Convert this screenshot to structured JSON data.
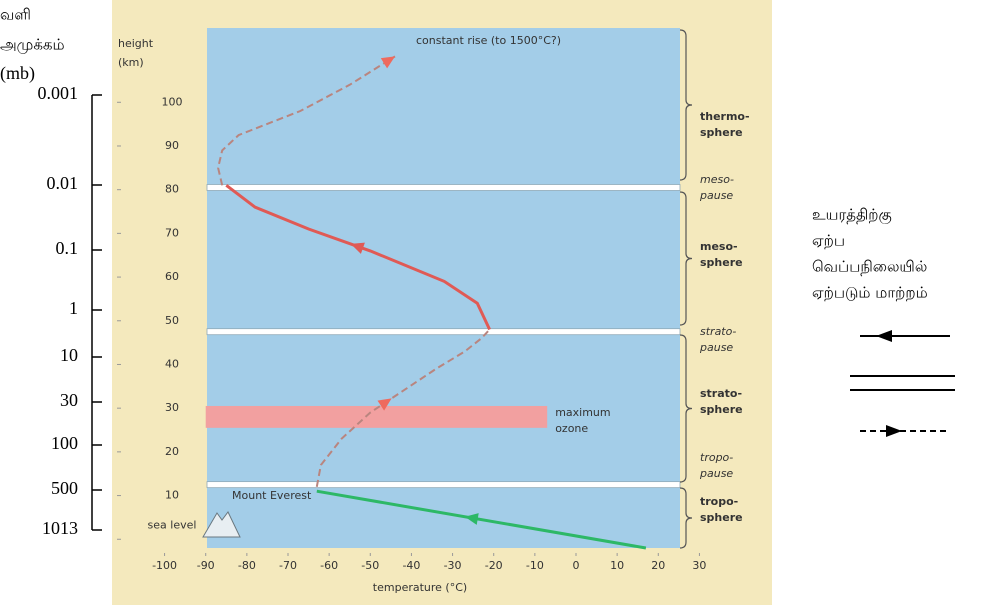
{
  "left_axis": {
    "title_lines": [
      "வளி",
      "அமுக்கம்",
      "(mb)"
    ],
    "ticks": [
      0.001,
      0.01,
      0.1,
      1,
      10,
      30,
      100,
      500,
      1013
    ]
  },
  "right_note": {
    "lines": [
      "உயரத்திற்கு",
      "ஏற்ப",
      "வெப்பநிலையில்",
      "ஏற்படும்  மாற்றம்"
    ]
  },
  "chart_data": {
    "type": "line",
    "ylabel_lines": [
      "height",
      "(km)"
    ],
    "xlabel": "temperature (°C)",
    "xlim": [
      -105,
      35
    ],
    "xticks": [
      -100,
      -90,
      -80,
      -70,
      -60,
      -50,
      -40,
      -30,
      -20,
      -10,
      0,
      10,
      20,
      30
    ],
    "ylim": [
      -2,
      117
    ],
    "yticks": [
      {
        "value": 0,
        "label": "sea level"
      },
      10,
      20,
      30,
      40,
      50,
      60,
      70,
      80,
      90,
      100
    ],
    "series": [
      {
        "color": "#2db866",
        "dash": false,
        "x": [
          17,
          -63
        ],
        "values": [
          -2,
          11
        ]
      },
      {
        "color": "#b9857f",
        "dash": true,
        "x": [
          -63,
          -62,
          -57,
          -50,
          -42,
          -34,
          -27,
          -23,
          -21
        ],
        "values": [
          12,
          17,
          23,
          29,
          34,
          39,
          43,
          46,
          48
        ]
      },
      {
        "color": "#e05a55",
        "dash": false,
        "x": [
          -21,
          -24,
          -32,
          -50,
          -65,
          -78,
          -85
        ],
        "values": [
          48,
          54,
          59,
          66,
          71,
          76,
          81
        ]
      },
      {
        "color": "#b9857f",
        "dash": true,
        "x": [
          -86,
          -87,
          -86,
          -82,
          -67,
          -55,
          -44
        ],
        "values": [
          81,
          85,
          89,
          92.5,
          98,
          104,
          110.5
        ]
      }
    ],
    "boundaries": [
      12.5,
      47.5,
      80.5
    ],
    "ozone": {
      "label_lines": [
        "maximum",
        "ozone"
      ],
      "ylim": [
        25.5,
        30.5
      ],
      "xlim": [
        -90,
        -7
      ],
      "color": "#f2a0a0"
    },
    "annotations": [
      "constant rise (to 1500°C?)",
      "Mount Everest"
    ],
    "layers": [
      {
        "lines": [
          "thermo-",
          "sphere"
        ],
        "style": "bold"
      },
      {
        "lines": [
          "meso-",
          "pause"
        ],
        "style": "italic"
      },
      {
        "lines": [
          "meso-",
          "sphere"
        ],
        "style": "bold"
      },
      {
        "lines": [
          "strato-",
          "pause"
        ],
        "style": "italic"
      },
      {
        "lines": [
          "strato-",
          "sphere"
        ],
        "style": "bold"
      },
      {
        "lines": [
          "tropo-",
          "pause"
        ],
        "style": "italic"
      },
      {
        "lines": [
          "tropo-",
          "sphere"
        ],
        "style": "bold"
      }
    ]
  }
}
